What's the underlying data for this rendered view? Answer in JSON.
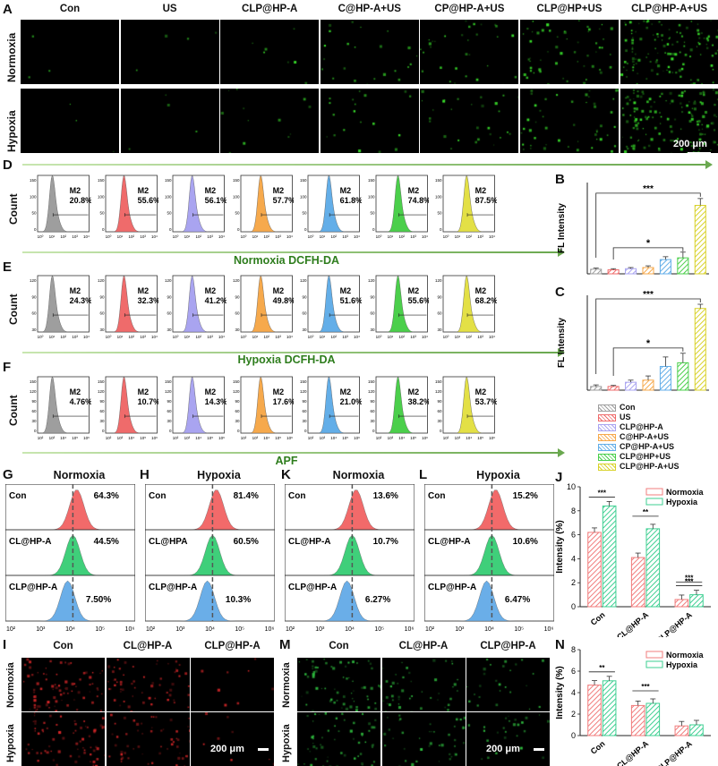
{
  "panel_letters": {
    "a": "A",
    "b": "B",
    "c": "C",
    "d": "D",
    "e": "E",
    "f": "F",
    "g": "G",
    "h": "H",
    "i": "I",
    "j": "J",
    "k": "K",
    "l": "L",
    "m": "M",
    "n": "N"
  },
  "panel_a": {
    "columns": [
      "Con",
      "US",
      "CLP@HP-A",
      "C@HP-A+US",
      "CP@HP-A+US",
      "CLP@HP+US",
      "CLP@HP-A+US"
    ],
    "rows": [
      "Normoxia",
      "Hypoxia"
    ],
    "intensity": {
      "normoxia": [
        0.02,
        0.03,
        0.05,
        0.15,
        0.2,
        0.35,
        0.8
      ],
      "hypoxia": [
        0.02,
        0.03,
        0.08,
        0.12,
        0.18,
        0.3,
        0.95
      ]
    },
    "colors": {
      "fluor": "#39e22b"
    },
    "scale_bar": "200 μm"
  },
  "flow_rows": [
    {
      "letter": "D",
      "caption": "Normoxia DCFH-DA",
      "gate": "M2",
      "values": [
        "20.8%",
        "55.6%",
        "56.1%",
        "57.7%",
        "61.8%",
        "74.8%",
        "87.5%"
      ],
      "ylabel": "Count",
      "yticks": [
        "150",
        "100",
        "50",
        "0"
      ],
      "xticks": [
        "10⁰",
        "10¹",
        "10²",
        "10³",
        "10⁴"
      ]
    },
    {
      "letter": "E",
      "caption": "Hypoxia DCFH-DA",
      "gate": "M2",
      "values": [
        "24.3%",
        "32.3%",
        "41.2%",
        "49.8%",
        "51.6%",
        "55.6%",
        "68.2%"
      ],
      "ylabel": "Count",
      "yticks": [
        "120",
        "90",
        "60",
        "30"
      ],
      "xticks": [
        "10⁰",
        "10¹",
        "10²",
        "10³",
        "10⁴"
      ]
    },
    {
      "letter": "F",
      "caption": "APF",
      "gate": "M2",
      "values": [
        "4.76%",
        "10.7%",
        "14.3%",
        "17.6%",
        "21.0%",
        "38.2%",
        "53.7%"
      ],
      "ylabel": "Count",
      "yticks": [
        "150",
        "120",
        "90",
        "60",
        "30",
        "0"
      ],
      "xticks": [
        "10²",
        "10³",
        "10⁴",
        "10⁵",
        "10⁶"
      ]
    }
  ],
  "flow_colors": [
    "#9e9e9e",
    "#ef6b6b",
    "#a9a4f0",
    "#f6a94c",
    "#63aee8",
    "#4bcf4b",
    "#e3e046"
  ],
  "chart_data": [
    {
      "type": "bar",
      "panel": "B",
      "ylabel": "FL Intensity",
      "categories": [
        "Con",
        "US",
        "CLP@HP-A",
        "C@HP-A+US",
        "CP@HP-A+US",
        "CLP@HP+US",
        "CLP@HP-A+US"
      ],
      "values": [
        0.8,
        0.7,
        0.9,
        1.1,
        2.5,
        2.8,
        12.0
      ],
      "errors": [
        0.2,
        0.2,
        0.2,
        0.3,
        0.5,
        1.0,
        1.2
      ],
      "ylim": [
        0,
        16
      ],
      "significance": [
        "***",
        "*"
      ]
    },
    {
      "type": "bar",
      "panel": "C",
      "ylabel": "FL Intensity",
      "categories": [
        "Con",
        "US",
        "CLP@HP-A",
        "C@HP-A+US",
        "CP@HP-A+US",
        "CLP@HP+US",
        "CLP@HP-A+US"
      ],
      "values": [
        0.7,
        0.7,
        1.5,
        1.9,
        4.5,
        5.2,
        15.5
      ],
      "errors": [
        0.3,
        0.2,
        0.4,
        0.8,
        1.8,
        1.8,
        0.8
      ],
      "ylim": [
        0,
        18
      ],
      "significance": [
        "***",
        "*"
      ]
    },
    {
      "type": "bar",
      "panel": "J",
      "ylabel": "Intensity (%)",
      "categories": [
        "Con",
        "CL@HP-A",
        "CLP@HP-A"
      ],
      "series": [
        {
          "name": "Normoxia",
          "values": [
            6.2,
            4.1,
            0.6
          ]
        },
        {
          "name": "Hypoxia",
          "values": [
            8.4,
            6.5,
            1.0
          ]
        }
      ],
      "ylim": [
        0,
        10
      ],
      "significance": [
        "***",
        "**",
        "***",
        "***",
        "***"
      ]
    },
    {
      "type": "bar",
      "panel": "N",
      "ylabel": "Intensity (%)",
      "categories": [
        "Con",
        "CL@HP-A",
        "CLP@HP-A"
      ],
      "series": [
        {
          "name": "Normoxia",
          "values": [
            4.7,
            2.8,
            0.9
          ]
        },
        {
          "name": "Hypoxia",
          "values": [
            5.1,
            3.0,
            1.0
          ]
        }
      ],
      "ylim": [
        0,
        8
      ],
      "significance": [
        "**",
        "***"
      ]
    }
  ],
  "bar_colors": [
    "#9e9e9e",
    "#ef6b6b",
    "#a9a4f0",
    "#f6a94c",
    "#63aee8",
    "#4bcf4b",
    "#d8d22a"
  ],
  "legend_bc": [
    "Con",
    "US",
    "CLP@HP-A",
    "C@HP-A+US",
    "CP@HP-A+US",
    "CLP@HP+US",
    "CLP@HP-A+US"
  ],
  "overlay_panels": [
    {
      "letter": "G",
      "title": "Normoxia",
      "rows": [
        {
          "label": "Con",
          "value": "64.3%"
        },
        {
          "label": "CL@HP-A",
          "value": "44.5%"
        },
        {
          "label": "CLP@HP-A",
          "value": "7.50%"
        }
      ]
    },
    {
      "letter": "H",
      "title": "Hypoxia",
      "rows": [
        {
          "label": "Con",
          "value": "81.4%"
        },
        {
          "label": "CL@HPA",
          "value": "60.5%"
        },
        {
          "label": "CLP@HP-A",
          "value": "10.3%"
        }
      ]
    },
    {
      "letter": "K",
      "title": "Normoxia",
      "rows": [
        {
          "label": "Con",
          "value": "13.6%"
        },
        {
          "label": "CL@HP-A",
          "value": "10.7%"
        },
        {
          "label": "CLP@HP-A",
          "value": "6.27%"
        }
      ]
    },
    {
      "letter": "L",
      "title": "Hypoxia",
      "rows": [
        {
          "label": "Con",
          "value": "15.2%"
        },
        {
          "label": "CL@HP-A",
          "value": "10.6%"
        },
        {
          "label": "CLP@HP-A",
          "value": "6.47%"
        }
      ]
    }
  ],
  "overlay_xticks": [
    "10²",
    "10³",
    "10⁴",
    "10⁵",
    "10⁶"
  ],
  "overlay_colors": [
    "#f26a6a",
    "#3fcf7a",
    "#6aaee8"
  ],
  "panel_i": {
    "columns": [
      "Con",
      "CL@HP-A",
      "CLP@HP-A"
    ],
    "rows": [
      "Normoxia",
      "Hypoxia"
    ],
    "color": "#e0282a",
    "intensity": [
      0.7,
      0.55,
      0.08
    ],
    "scale_bar": "200 μm"
  },
  "panel_m": {
    "columns": [
      "Con",
      "CL@HP-A",
      "CLP@HP-A"
    ],
    "rows": [
      "Normoxia",
      "Hypoxia"
    ],
    "color": "#2fbf3f",
    "intensity": [
      0.6,
      0.4,
      0.25
    ],
    "scale_bar": "200 μm"
  },
  "legend_jn": [
    "Normoxia",
    "Hypoxia"
  ]
}
